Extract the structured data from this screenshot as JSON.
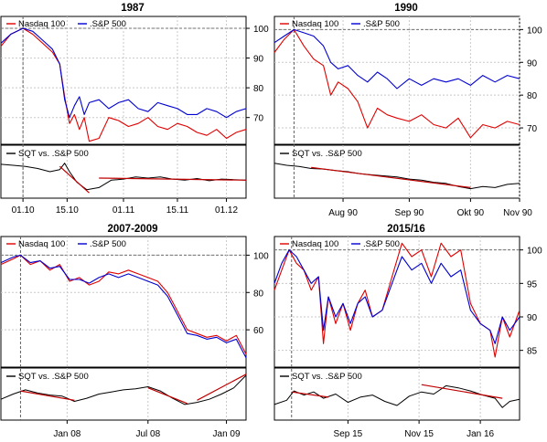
{
  "colors": {
    "nasdaq": "#e00000",
    "sp500": "#0000d0",
    "sqt": "#000000",
    "trend": "#c00000",
    "grid": "#c8c8c8",
    "frame": "#000000"
  },
  "chart_data": [
    {
      "type": "line",
      "title": "1987",
      "legend": [
        "Nasdaq 100",
        ".S&P 500"
      ],
      "lower_legend": [
        "SQT vs. .S&P 500"
      ],
      "upper_yticks": [
        100,
        90,
        80,
        70
      ],
      "upper_ylim": [
        61,
        104
      ],
      "x_ticks": [
        "01.10",
        "15.10",
        "01.11",
        "15.11",
        "01.12"
      ],
      "x_tick_pos": [
        0.09,
        0.27,
        0.5,
        0.72,
        0.92
      ],
      "vline_pos": 0.09,
      "series": [
        {
          "name": "Nasdaq 100",
          "x": [
            0,
            0.04,
            0.09,
            0.13,
            0.17,
            0.21,
            0.24,
            0.26,
            0.28,
            0.3,
            0.32,
            0.34,
            0.36,
            0.4,
            0.44,
            0.48,
            0.52,
            0.56,
            0.6,
            0.64,
            0.68,
            0.72,
            0.76,
            0.8,
            0.84,
            0.88,
            0.92,
            0.96,
            1.0
          ],
          "values": [
            94,
            98,
            100,
            98,
            95,
            92,
            88,
            77,
            68,
            71,
            66,
            70,
            62,
            63,
            70,
            69,
            67,
            68,
            70,
            67,
            66,
            68,
            67,
            65,
            64,
            66,
            63,
            65,
            66
          ]
        },
        {
          "name": ".S&P 500",
          "x": [
            0,
            0.04,
            0.09,
            0.13,
            0.17,
            0.21,
            0.24,
            0.26,
            0.28,
            0.3,
            0.32,
            0.34,
            0.36,
            0.4,
            0.44,
            0.48,
            0.52,
            0.56,
            0.6,
            0.64,
            0.68,
            0.72,
            0.76,
            0.8,
            0.84,
            0.88,
            0.92,
            0.96,
            1.0
          ],
          "values": [
            95,
            98,
            100,
            99,
            96,
            93,
            88,
            76,
            70,
            74,
            77,
            71,
            75,
            76,
            73,
            75,
            76,
            73,
            72,
            75,
            74,
            73,
            71,
            71,
            73,
            72,
            70,
            72,
            73
          ]
        }
      ],
      "sqt": {
        "x": [
          0,
          0.05,
          0.1,
          0.15,
          0.2,
          0.24,
          0.26,
          0.28,
          0.31,
          0.35,
          0.4,
          0.45,
          0.5,
          0.55,
          0.6,
          0.65,
          0.7,
          0.75,
          0.8,
          0.85,
          0.9,
          0.95,
          1.0
        ],
        "values": [
          0.64,
          0.62,
          0.6,
          0.56,
          0.5,
          0.54,
          0.66,
          0.5,
          0.3,
          0.16,
          0.2,
          0.34,
          0.36,
          0.4,
          0.38,
          0.4,
          0.36,
          0.34,
          0.37,
          0.33,
          0.36,
          0.35,
          0.34
        ]
      },
      "trends": [
        {
          "x": [
            0.24,
            0.36
          ],
          "values": [
            0.6,
            0.1
          ]
        },
        {
          "x": [
            0.4,
            1.0
          ],
          "values": [
            0.38,
            0.34
          ]
        }
      ]
    },
    {
      "type": "line",
      "title": "1990",
      "legend": [
        "Nasdaq 100",
        ".S&P 500"
      ],
      "lower_legend": [
        "SQT vs. .S&P 500"
      ],
      "upper_yticks": [
        100,
        90,
        80,
        70
      ],
      "upper_ylim": [
        65,
        104
      ],
      "x_ticks": [
        "Aug 90",
        "Sep 90",
        "Okt 90",
        "Nov 90"
      ],
      "x_tick_pos": [
        0.28,
        0.55,
        0.8,
        1.0
      ],
      "vline_pos": 0.08,
      "series": [
        {
          "name": "Nasdaq 100",
          "x": [
            0,
            0.04,
            0.08,
            0.12,
            0.16,
            0.2,
            0.23,
            0.26,
            0.3,
            0.34,
            0.38,
            0.42,
            0.46,
            0.5,
            0.55,
            0.6,
            0.65,
            0.7,
            0.75,
            0.8,
            0.85,
            0.9,
            0.95,
            1.0
          ],
          "values": [
            93,
            97,
            100,
            95,
            91,
            89,
            80,
            84,
            82,
            78,
            70,
            76,
            74,
            73,
            72,
            74,
            71,
            70,
            73,
            67,
            71,
            70,
            72,
            71
          ]
        },
        {
          "name": ".S&P 500",
          "x": [
            0,
            0.04,
            0.08,
            0.12,
            0.16,
            0.2,
            0.23,
            0.26,
            0.3,
            0.34,
            0.38,
            0.42,
            0.46,
            0.5,
            0.55,
            0.6,
            0.65,
            0.7,
            0.75,
            0.8,
            0.85,
            0.9,
            0.95,
            1.0
          ],
          "values": [
            96,
            98,
            100,
            99,
            98,
            95,
            90,
            88,
            89,
            86,
            84,
            87,
            85,
            82,
            85,
            83,
            85,
            84,
            85,
            83,
            86,
            84,
            86,
            85
          ]
        }
      ],
      "sqt": {
        "x": [
          0,
          0.05,
          0.1,
          0.15,
          0.2,
          0.25,
          0.3,
          0.35,
          0.4,
          0.45,
          0.5,
          0.55,
          0.6,
          0.65,
          0.7,
          0.75,
          0.8,
          0.85,
          0.9,
          0.95,
          1.0
        ],
        "values": [
          0.66,
          0.62,
          0.6,
          0.56,
          0.55,
          0.52,
          0.5,
          0.46,
          0.44,
          0.42,
          0.4,
          0.36,
          0.34,
          0.3,
          0.28,
          0.22,
          0.18,
          0.22,
          0.2,
          0.26,
          0.28
        ]
      },
      "trends": [
        {
          "x": [
            0.15,
            0.8
          ],
          "values": [
            0.58,
            0.2
          ]
        }
      ]
    },
    {
      "type": "line",
      "title": "2007-2009",
      "legend": [
        "Nasdaq 100",
        ".S&P 500"
      ],
      "lower_legend": [
        "SQT vs. .S&P 500"
      ],
      "upper_yticks": [
        100,
        80,
        60
      ],
      "upper_ylim": [
        40,
        110
      ],
      "x_ticks": [
        "Jan 08",
        "Jul 08",
        "Jan 09"
      ],
      "x_tick_pos": [
        0.27,
        0.6,
        0.92
      ],
      "vline_pos": 0.08,
      "series": [
        {
          "name": "Nasdaq 100",
          "x": [
            0,
            0.05,
            0.08,
            0.12,
            0.16,
            0.2,
            0.24,
            0.28,
            0.32,
            0.36,
            0.4,
            0.44,
            0.48,
            0.52,
            0.56,
            0.6,
            0.64,
            0.68,
            0.72,
            0.76,
            0.8,
            0.84,
            0.88,
            0.92,
            0.96,
            1.0
          ],
          "values": [
            95,
            98,
            100,
            95,
            97,
            92,
            95,
            86,
            88,
            84,
            86,
            91,
            90,
            92,
            90,
            88,
            86,
            80,
            70,
            60,
            58,
            56,
            57,
            54,
            57,
            47
          ]
        },
        {
          "name": ".S&P 500",
          "x": [
            0,
            0.05,
            0.08,
            0.12,
            0.16,
            0.2,
            0.24,
            0.28,
            0.32,
            0.36,
            0.4,
            0.44,
            0.48,
            0.52,
            0.56,
            0.6,
            0.64,
            0.68,
            0.72,
            0.76,
            0.8,
            0.84,
            0.88,
            0.92,
            0.96,
            1.0
          ],
          "values": [
            96,
            99,
            100,
            96,
            97,
            93,
            94,
            87,
            87,
            85,
            88,
            90,
            88,
            90,
            88,
            86,
            84,
            78,
            68,
            58,
            57,
            55,
            56,
            53,
            55,
            45
          ]
        }
      ],
      "sqt": {
        "x": [
          0,
          0.05,
          0.1,
          0.15,
          0.2,
          0.25,
          0.3,
          0.35,
          0.4,
          0.45,
          0.5,
          0.55,
          0.6,
          0.65,
          0.7,
          0.75,
          0.8,
          0.85,
          0.9,
          0.95,
          1.0
        ],
        "values": [
          0.4,
          0.5,
          0.58,
          0.52,
          0.48,
          0.46,
          0.36,
          0.42,
          0.5,
          0.54,
          0.58,
          0.6,
          0.64,
          0.56,
          0.42,
          0.3,
          0.34,
          0.4,
          0.5,
          0.62,
          0.86
        ]
      },
      "trends": [
        {
          "x": [
            0.08,
            0.3
          ],
          "values": [
            0.56,
            0.38
          ]
        },
        {
          "x": [
            0.6,
            0.76
          ],
          "values": [
            0.62,
            0.32
          ]
        },
        {
          "x": [
            0.8,
            1.0
          ],
          "values": [
            0.38,
            0.88
          ]
        }
      ]
    },
    {
      "type": "line",
      "title": "2015/16",
      "legend": [
        "Nasdaq 100",
        ".S&P 500"
      ],
      "lower_legend": [
        "SQT vs. .S&P 500"
      ],
      "upper_yticks": [
        100,
        95,
        90,
        85
      ],
      "upper_ylim": [
        82.5,
        102
      ],
      "x_ticks": [
        "Sep 15",
        "Nov 15",
        "Jan 16"
      ],
      "x_tick_pos": [
        0.3,
        0.59,
        0.84
      ],
      "vline_pos": 0.07,
      "series": [
        {
          "name": "Nasdaq 100",
          "x": [
            0,
            0.03,
            0.06,
            0.09,
            0.12,
            0.15,
            0.18,
            0.2,
            0.22,
            0.25,
            0.28,
            0.31,
            0.34,
            0.37,
            0.4,
            0.44,
            0.48,
            0.52,
            0.56,
            0.6,
            0.64,
            0.68,
            0.72,
            0.76,
            0.8,
            0.84,
            0.88,
            0.9,
            0.93,
            0.96,
            1.0
          ],
          "values": [
            94,
            97,
            100,
            98,
            97,
            94,
            96,
            86,
            93,
            89,
            92,
            88,
            92,
            94,
            90,
            91,
            96,
            101,
            99,
            100,
            96,
            101,
            99,
            100,
            92,
            89,
            88,
            84,
            90,
            87,
            91
          ]
        },
        {
          "name": ".S&P 500",
          "x": [
            0,
            0.03,
            0.06,
            0.09,
            0.12,
            0.15,
            0.18,
            0.2,
            0.22,
            0.25,
            0.28,
            0.31,
            0.34,
            0.37,
            0.4,
            0.44,
            0.48,
            0.52,
            0.56,
            0.6,
            0.64,
            0.68,
            0.72,
            0.76,
            0.8,
            0.84,
            0.88,
            0.9,
            0.93,
            0.96,
            1.0
          ],
          "values": [
            95,
            98,
            100,
            99,
            97,
            95,
            96,
            88,
            93,
            90,
            92,
            89,
            92,
            93,
            90,
            91,
            95,
            99,
            97,
            98,
            95,
            98,
            96,
            97,
            91,
            89,
            88,
            86,
            90,
            88,
            90
          ]
        }
      ],
      "sqt": {
        "x": [
          0,
          0.05,
          0.08,
          0.12,
          0.16,
          0.2,
          0.25,
          0.3,
          0.35,
          0.4,
          0.45,
          0.5,
          0.55,
          0.6,
          0.65,
          0.7,
          0.75,
          0.8,
          0.85,
          0.9,
          0.93,
          0.96,
          1.0
        ],
        "values": [
          0.3,
          0.38,
          0.56,
          0.48,
          0.54,
          0.42,
          0.5,
          0.34,
          0.44,
          0.48,
          0.36,
          0.28,
          0.46,
          0.54,
          0.5,
          0.66,
          0.62,
          0.56,
          0.48,
          0.42,
          0.24,
          0.36,
          0.4
        ]
      },
      "trends": [
        {
          "x": [
            0.07,
            0.22
          ],
          "values": [
            0.54,
            0.44
          ]
        },
        {
          "x": [
            0.6,
            0.93
          ],
          "values": [
            0.68,
            0.42
          ]
        }
      ]
    }
  ]
}
